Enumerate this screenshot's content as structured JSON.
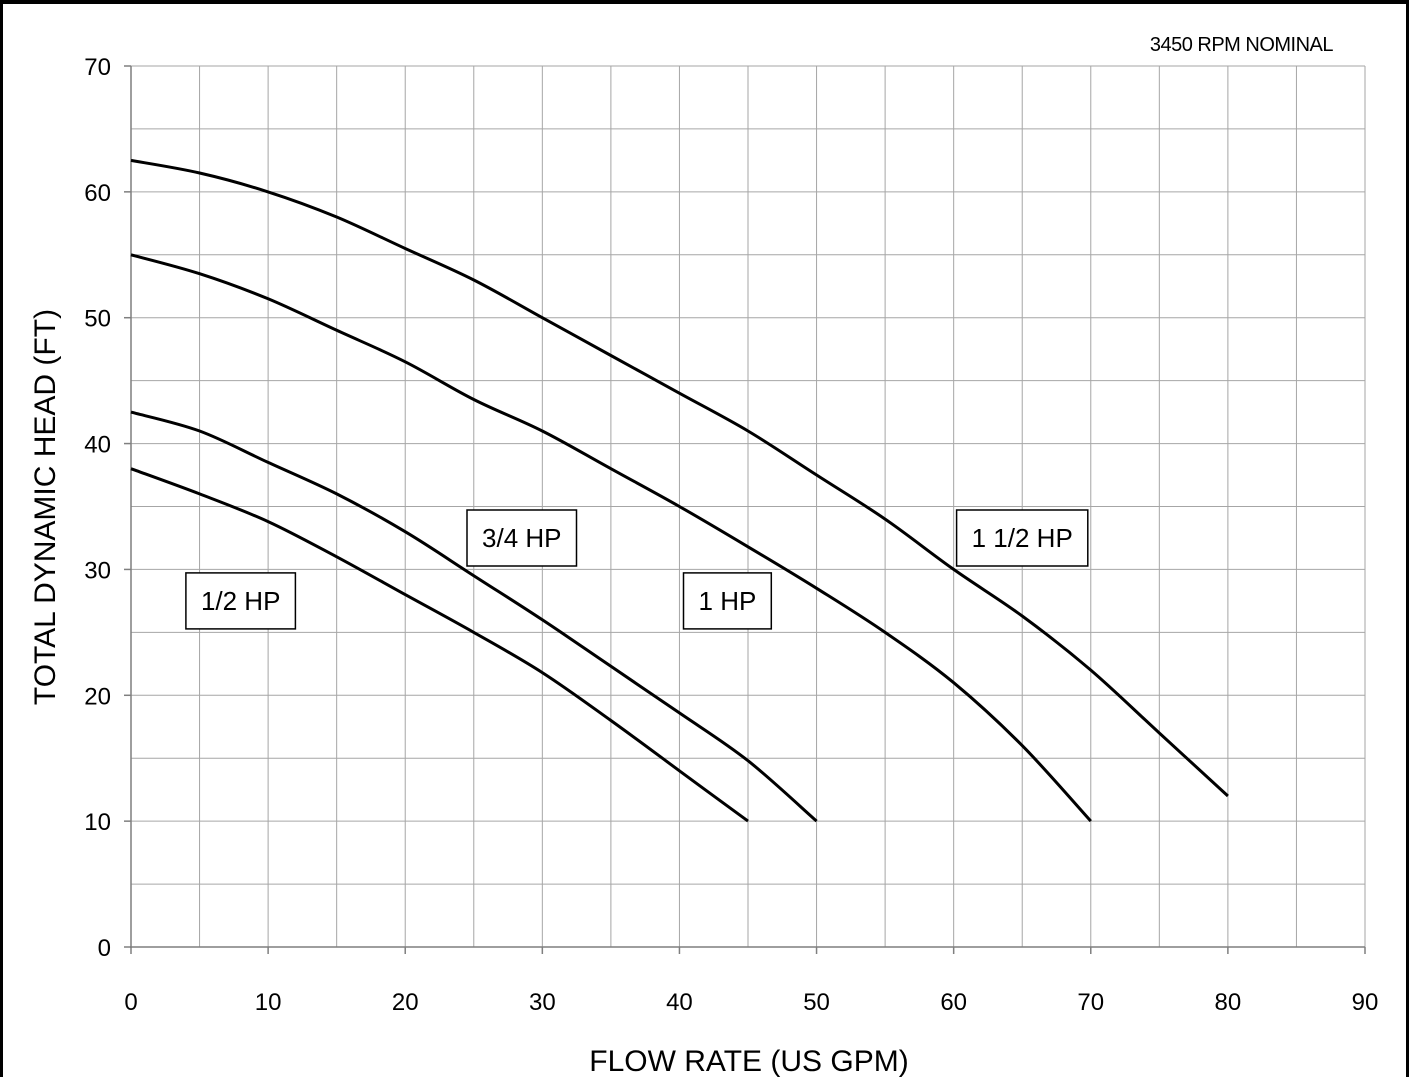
{
  "chart_data": {
    "type": "line",
    "title": "",
    "annotation": "3450 RPM NOMINAL",
    "xlabel": "FLOW RATE  (US GPM)",
    "ylabel": "TOTAL DYNAMIC HEAD  (FT)",
    "xlim": [
      0,
      90
    ],
    "ylim": [
      0,
      70
    ],
    "x_ticks": [
      0,
      10,
      20,
      30,
      40,
      50,
      60,
      70,
      80,
      90
    ],
    "y_ticks": [
      0,
      10,
      20,
      30,
      40,
      50,
      60,
      70
    ],
    "x_tick_labels": [
      "0",
      "10",
      "20",
      "30",
      "40",
      "50",
      "60",
      "70",
      "80",
      "90"
    ],
    "y_tick_labels": [
      "0",
      "10",
      "20",
      "30",
      "40",
      "50",
      "60",
      "70"
    ],
    "grid": true,
    "minor_grid_step": {
      "x": 5,
      "y": 5
    },
    "legend": "none",
    "series": [
      {
        "name": "1/2 HP",
        "x": [
          0,
          5,
          10,
          15,
          20,
          25,
          30,
          35,
          40,
          45
        ],
        "y": [
          38,
          36,
          33.8,
          31,
          28,
          25,
          21.8,
          18,
          14,
          10
        ],
        "label_pos": [
          8,
          27.5
        ]
      },
      {
        "name": "3/4 HP",
        "x": [
          0,
          5,
          10,
          15,
          20,
          25,
          30,
          35,
          40,
          45,
          50
        ],
        "y": [
          42.5,
          41,
          38.5,
          36,
          33,
          29.5,
          26,
          22.3,
          18.6,
          14.8,
          10
        ],
        "label_pos": [
          28.5,
          32.5
        ]
      },
      {
        "name": "1 HP",
        "x": [
          0,
          5,
          10,
          15,
          20,
          25,
          30,
          35,
          40,
          45,
          50,
          55,
          60,
          65,
          70
        ],
        "y": [
          55,
          53.5,
          51.5,
          49,
          46.5,
          43.5,
          41,
          38,
          35,
          31.8,
          28.5,
          25,
          21,
          16,
          10
        ],
        "label_pos": [
          43.5,
          27.5
        ]
      },
      {
        "name": "1 1/2 HP",
        "x": [
          0,
          5,
          10,
          15,
          20,
          25,
          30,
          35,
          40,
          45,
          50,
          55,
          60,
          65,
          70,
          75,
          80
        ],
        "y": [
          62.5,
          61.5,
          60,
          58,
          55.5,
          53,
          50,
          47,
          44,
          41,
          37.5,
          34,
          30,
          26.3,
          22,
          17,
          12
        ],
        "label_pos": [
          65,
          32.5
        ]
      }
    ]
  }
}
